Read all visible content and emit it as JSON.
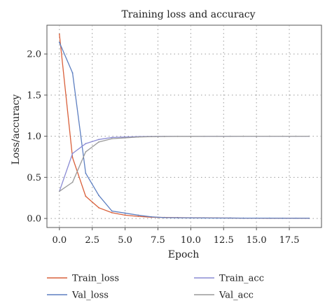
{
  "chart_data": {
    "type": "line",
    "title": "Training loss and accuracy",
    "xlabel": "Epoch",
    "ylabel": "Loss/accuracy",
    "xlim": [
      -0.95,
      19.95
    ],
    "ylim": [
      -0.11,
      2.35
    ],
    "xticks": [
      0,
      2.5,
      5,
      7.5,
      10,
      12.5,
      15,
      17.5
    ],
    "xtick_labels": [
      "0.0",
      "2.5",
      "5.0",
      "7.5",
      "10.0",
      "12.5",
      "15.0",
      "17.5"
    ],
    "yticks": [
      0,
      0.5,
      1,
      1.5,
      2
    ],
    "ytick_labels": [
      "0.0",
      "0.5",
      "1.0",
      "1.5",
      "2.0"
    ],
    "grid": true,
    "legend_position": "below-chart",
    "x": [
      0,
      1,
      2,
      3,
      4,
      5,
      6,
      7,
      8,
      9,
      10,
      11,
      12,
      13,
      14,
      15,
      16,
      17,
      18,
      19
    ],
    "series": [
      {
        "name": "Train_loss",
        "color": "#d9603b",
        "values": [
          2.24,
          0.74,
          0.27,
          0.13,
          0.07,
          0.04,
          0.025,
          0.015,
          0.012,
          0.01,
          0.008,
          0.007,
          0.006,
          0.005,
          0.004,
          0.004,
          0.003,
          0.003,
          0.003,
          0.002
        ]
      },
      {
        "name": "Val_loss",
        "color": "#5d7fc1",
        "values": [
          2.14,
          1.77,
          0.55,
          0.28,
          0.09,
          0.065,
          0.04,
          0.02,
          0.01,
          0.008,
          0.007,
          0.006,
          0.005,
          0.005,
          0.004,
          0.004,
          0.004,
          0.003,
          0.003,
          0.003
        ]
      },
      {
        "name": "Train_acc",
        "color": "#8a8bd4",
        "values": [
          0.33,
          0.79,
          0.91,
          0.96,
          0.985,
          0.99,
          0.995,
          0.997,
          0.998,
          0.999,
          0.999,
          0.999,
          1.0,
          1.0,
          1.0,
          1.0,
          1.0,
          1.0,
          1.0,
          1.0
        ]
      },
      {
        "name": "Val_acc",
        "color": "#9a9a9a",
        "values": [
          0.33,
          0.44,
          0.81,
          0.93,
          0.97,
          0.98,
          0.99,
          0.995,
          0.997,
          0.998,
          0.998,
          0.999,
          0.999,
          0.999,
          1.0,
          1.0,
          1.0,
          1.0,
          1.0,
          1.0
        ]
      }
    ]
  }
}
